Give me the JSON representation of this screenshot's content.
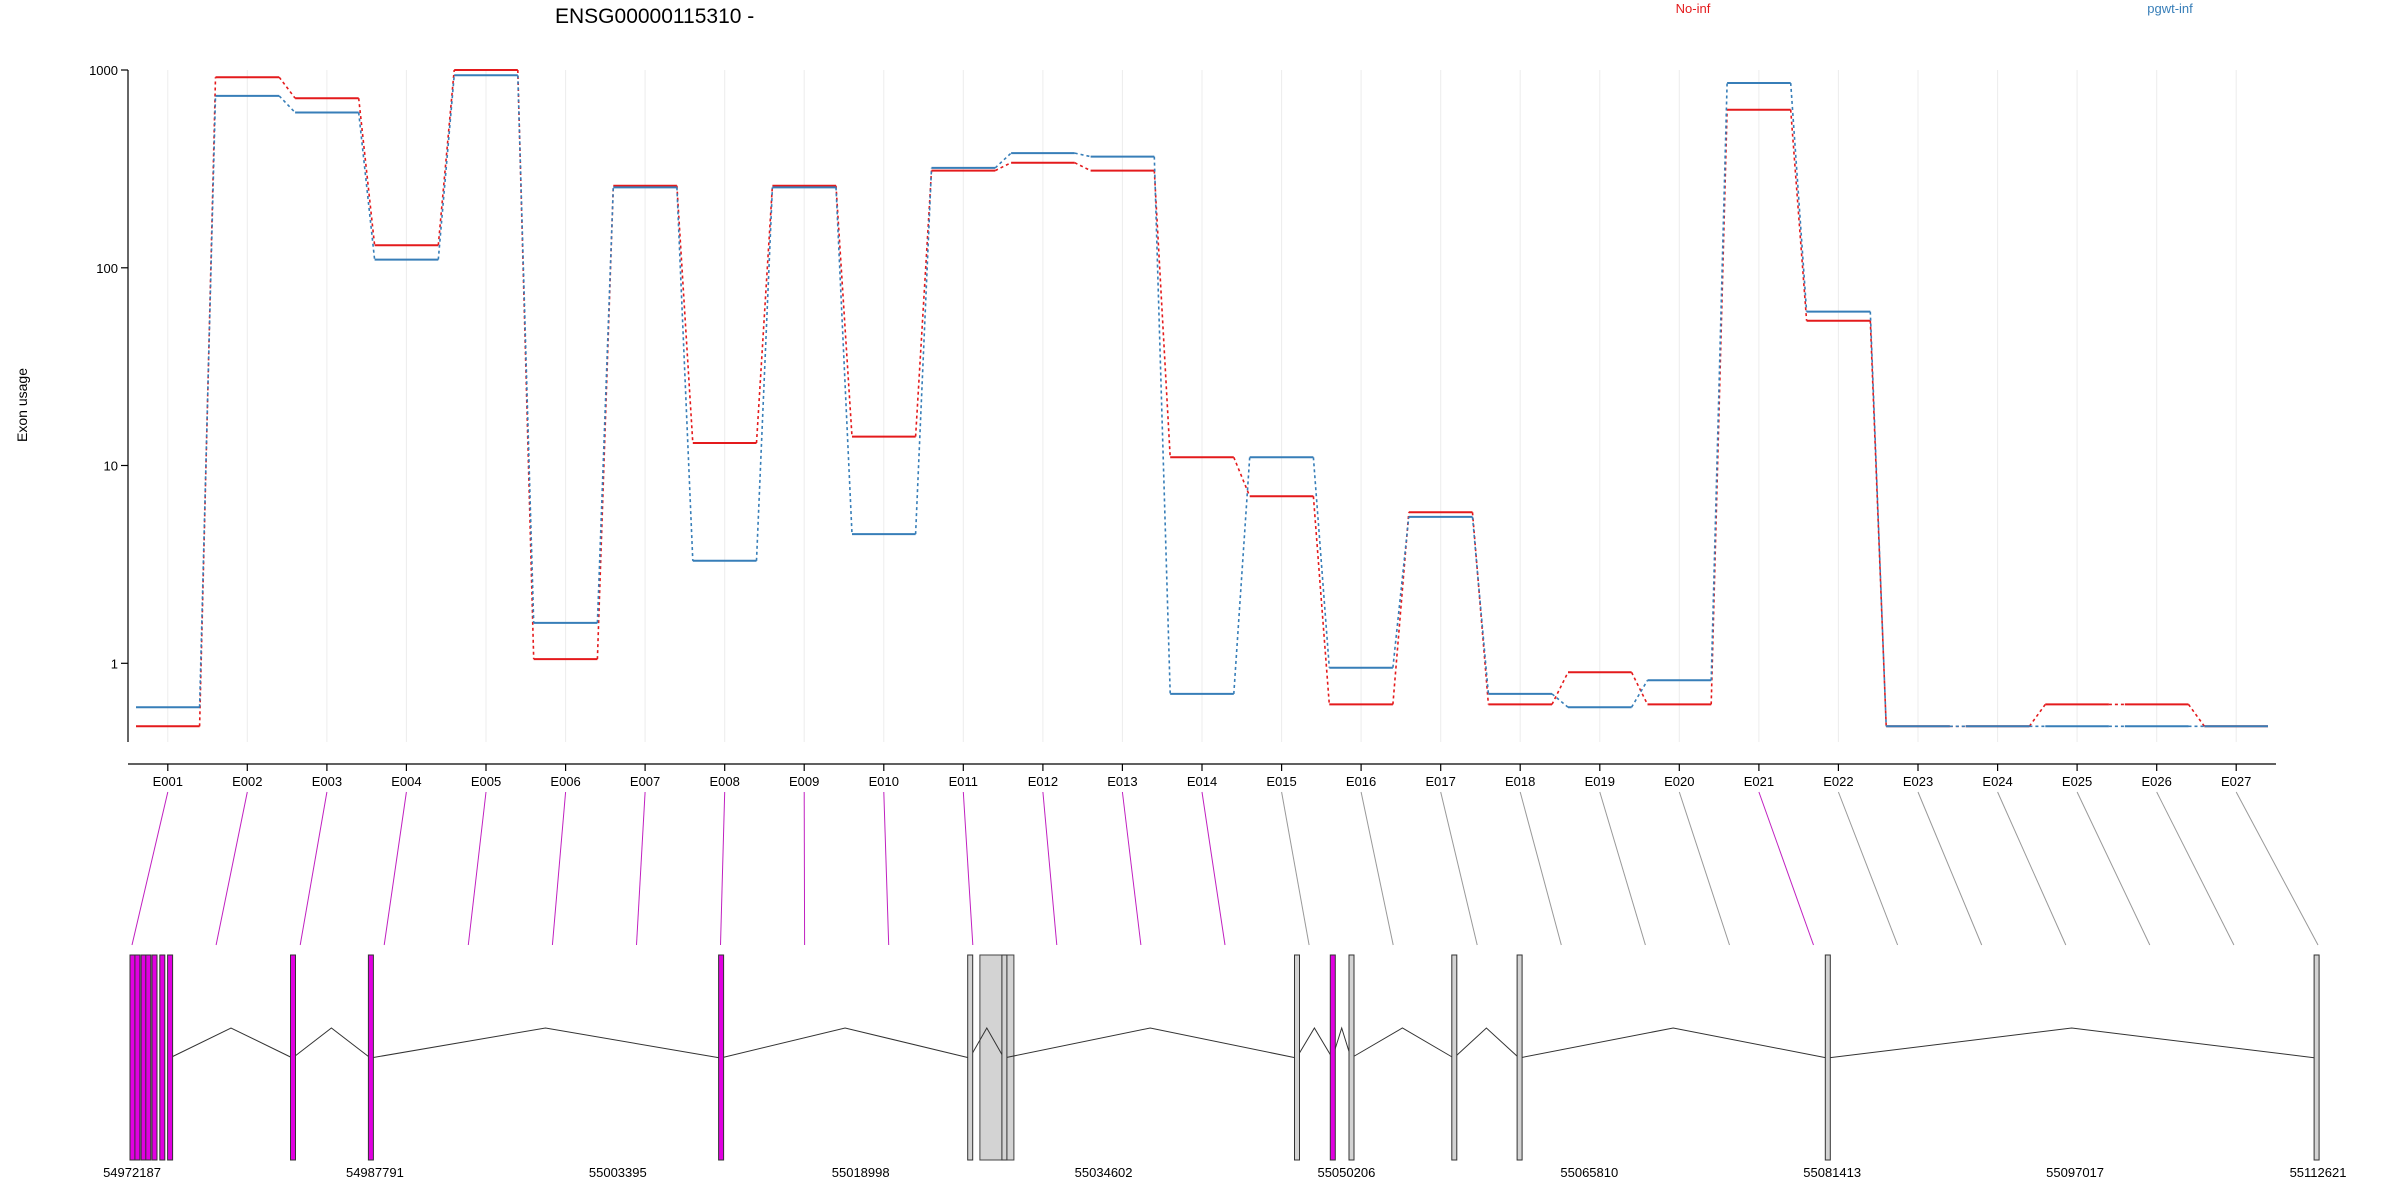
{
  "chart_data": {
    "type": "line",
    "title": "ENSG00000115310 -",
    "ylabel": "Exon usage",
    "xlabel": "",
    "yscale": "log",
    "ylim": [
      0.4,
      1000
    ],
    "yticks": [
      1,
      10,
      100,
      1000
    ],
    "ytick_labels": [
      "1",
      "10",
      "100",
      "1000"
    ],
    "categories": [
      "E001",
      "E002",
      "E003",
      "E004",
      "E005",
      "E006",
      "E007",
      "E008",
      "E009",
      "E010",
      "E011",
      "E012",
      "E013",
      "E014",
      "E015",
      "E016",
      "E017",
      "E018",
      "E019",
      "E020",
      "E021",
      "E022",
      "E023",
      "E024",
      "E025",
      "E026",
      "E027"
    ],
    "grid": "vertical",
    "legend_placement": "top",
    "series": [
      {
        "name": "No-inf",
        "color": "#e41a1c",
        "values": [
          0.48,
          920,
          720,
          130,
          1000,
          1.05,
          260,
          13,
          260,
          14,
          310,
          340,
          310,
          11,
          7,
          0.62,
          5.8,
          0.62,
          0.9,
          0.62,
          630,
          54,
          0.48,
          0.48,
          0.62,
          0.62,
          0.48
        ]
      },
      {
        "name": "pgwt-inf",
        "color": "#377eb8",
        "values": [
          0.6,
          740,
          610,
          110,
          940,
          1.6,
          255,
          3.3,
          255,
          4.5,
          320,
          380,
          365,
          0.7,
          11,
          0.95,
          5.5,
          0.7,
          0.6,
          0.82,
          860,
          60,
          0.48,
          0.48,
          0.48,
          0.48,
          0.48
        ]
      }
    ],
    "gene_model": {
      "coordinate_labels": [
        "54972187",
        "54987791",
        "55003395",
        "55018998",
        "55034602",
        "55050206",
        "55065810",
        "55081413",
        "55097017",
        "55112621"
      ],
      "genomic_range": [
        54972187,
        55112621
      ],
      "exon_coords": [
        54972187,
        54972500,
        54972900,
        54973200,
        54973600,
        54974100,
        54974600,
        54982500,
        54987500,
        55010000,
        55026000,
        55028200,
        55047000,
        55049300,
        55050500,
        55057100,
        55061300,
        55081100,
        55112500
      ],
      "exon_colors": {
        "significant": "#e100e1",
        "normal": "#d3d3d3"
      },
      "exon_significance": [
        true,
        true,
        true,
        true,
        true,
        true,
        true,
        true,
        true,
        true,
        true,
        true,
        true,
        true,
        false,
        false,
        false,
        false,
        false,
        false,
        true,
        false,
        false,
        false,
        false,
        false,
        false
      ]
    }
  }
}
